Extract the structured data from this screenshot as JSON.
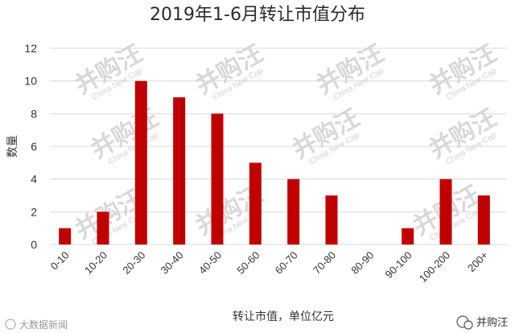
{
  "chart_data": {
    "type": "bar",
    "title": "2019年1-6月转让市值分布",
    "xlabel": "转让市值，单位亿元",
    "ylabel": "数量",
    "categories": [
      "0-10",
      "10-20",
      "20-30",
      "30-40",
      "40-50",
      "50-60",
      "60-70",
      "70-80",
      "80-90",
      "90-100",
      "100-200",
      "200+"
    ],
    "values": [
      1,
      2,
      10,
      9,
      8,
      5,
      4,
      3,
      0,
      1,
      4,
      3
    ],
    "ylim": [
      0,
      12
    ],
    "yticks": [
      0,
      2,
      4,
      6,
      8,
      10,
      12
    ],
    "grid": true,
    "legend": "none",
    "bar_color": "#c00000"
  },
  "watermark": {
    "main": "并购汪",
    "sub": "China New Cap"
  },
  "footer": {
    "left": "大数据新闻",
    "right": "并购汪"
  },
  "colors": {
    "grid": "#d9d9d9",
    "bar": "#c00000",
    "watermark": "#d8d8d8"
  }
}
